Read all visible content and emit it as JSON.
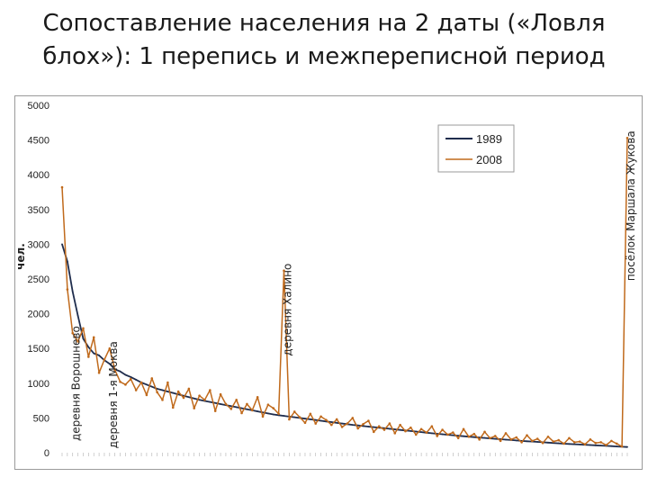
{
  "title": "Сопоставление населения на 2 даты («Ловля блох»): 1 перепись и межпереписной период",
  "chart_data": {
    "type": "line",
    "ylabel": "чел.",
    "ylim": [
      0,
      5000
    ],
    "yticks": [
      0,
      500,
      1000,
      1500,
      2000,
      2500,
      3000,
      3500,
      4000,
      4500,
      5000
    ],
    "grid": false,
    "legend": "top-right",
    "n_points": 108,
    "series": [
      {
        "name": "1989",
        "color": "#1f2d4d",
        "values": [
          3000,
          2750,
          2320,
          1970,
          1640,
          1520,
          1430,
          1400,
          1330,
          1280,
          1200,
          1170,
          1120,
          1090,
          1050,
          1010,
          980,
          950,
          920,
          900,
          880,
          860,
          840,
          820,
          800,
          780,
          760,
          745,
          730,
          715,
          700,
          685,
          670,
          655,
          640,
          625,
          610,
          595,
          580,
          565,
          550,
          540,
          530,
          520,
          510,
          500,
          490,
          480,
          470,
          460,
          450,
          440,
          430,
          420,
          410,
          400,
          392,
          384,
          376,
          368,
          360,
          352,
          344,
          336,
          328,
          320,
          312,
          304,
          296,
          288,
          280,
          272,
          265,
          258,
          251,
          244,
          237,
          230,
          224,
          218,
          212,
          206,
          200,
          194,
          188,
          182,
          176,
          170,
          165,
          160,
          155,
          150,
          145,
          140,
          135,
          130,
          126,
          122,
          118,
          114,
          110,
          106,
          102,
          98,
          94,
          90,
          86,
          82
        ]
      },
      {
        "name": "2008",
        "color": "#c06a1c",
        "values": [
          3820,
          2350,
          1720,
          1600,
          1790,
          1380,
          1660,
          1150,
          1340,
          1500,
          1190,
          1020,
          980,
          1060,
          900,
          1010,
          830,
          1070,
          870,
          760,
          1010,
          650,
          880,
          790,
          920,
          640,
          820,
          760,
          900,
          600,
          840,
          700,
          630,
          760,
          570,
          700,
          610,
          800,
          520,
          690,
          640,
          560,
          2620,
          480,
          590,
          510,
          430,
          560,
          420,
          520,
          470,
          400,
          480,
          370,
          420,
          500,
          350,
          410,
          460,
          300,
          380,
          330,
          420,
          280,
          400,
          310,
          360,
          260,
          340,
          290,
          380,
          240,
          330,
          260,
          290,
          210,
          340,
          230,
          270,
          190,
          300,
          210,
          240,
          170,
          280,
          190,
          220,
          150,
          250,
          170,
          200,
          140,
          230,
          160,
          180,
          130,
          210,
          150,
          160,
          120,
          190,
          140,
          150,
          110,
          170,
          130,
          90,
          4530
        ]
      }
    ],
    "annotations": [
      {
        "text": "деревня Ворошнево",
        "index": 2
      },
      {
        "text": "деревня 1-я Моква",
        "index": 9
      },
      {
        "text": "деревня Халино",
        "index": 42
      },
      {
        "text": "посёлок Маршала Жукова",
        "index": 107
      }
    ]
  }
}
